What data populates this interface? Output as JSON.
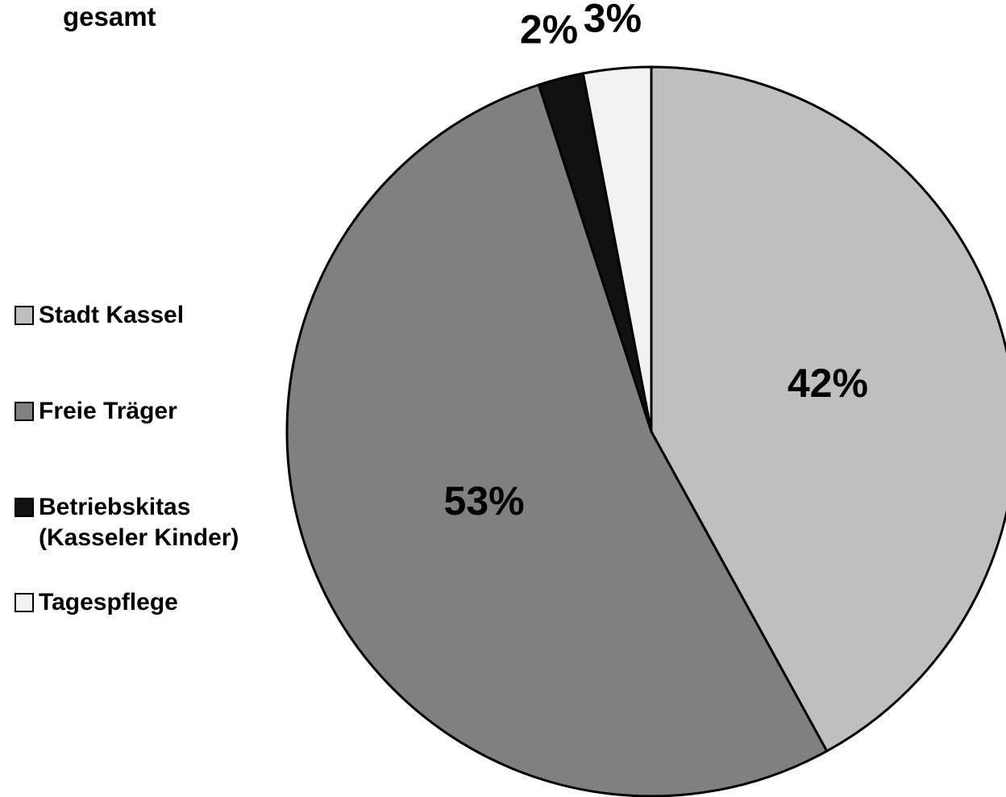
{
  "chart_data": {
    "type": "pie",
    "title": "gesamt",
    "categories": [
      "Stadt Kassel",
      "Freie Träger",
      "Betriebskitas\n(Kasseler Kinder)",
      "Tagespflege"
    ],
    "values": [
      42,
      53,
      2,
      3
    ],
    "value_labels": [
      "42%",
      "53%",
      "2%",
      "3%"
    ],
    "colors": [
      "#bfbfbf",
      "#808080",
      "#111111",
      "#f2f2f2"
    ],
    "legend": "left"
  }
}
